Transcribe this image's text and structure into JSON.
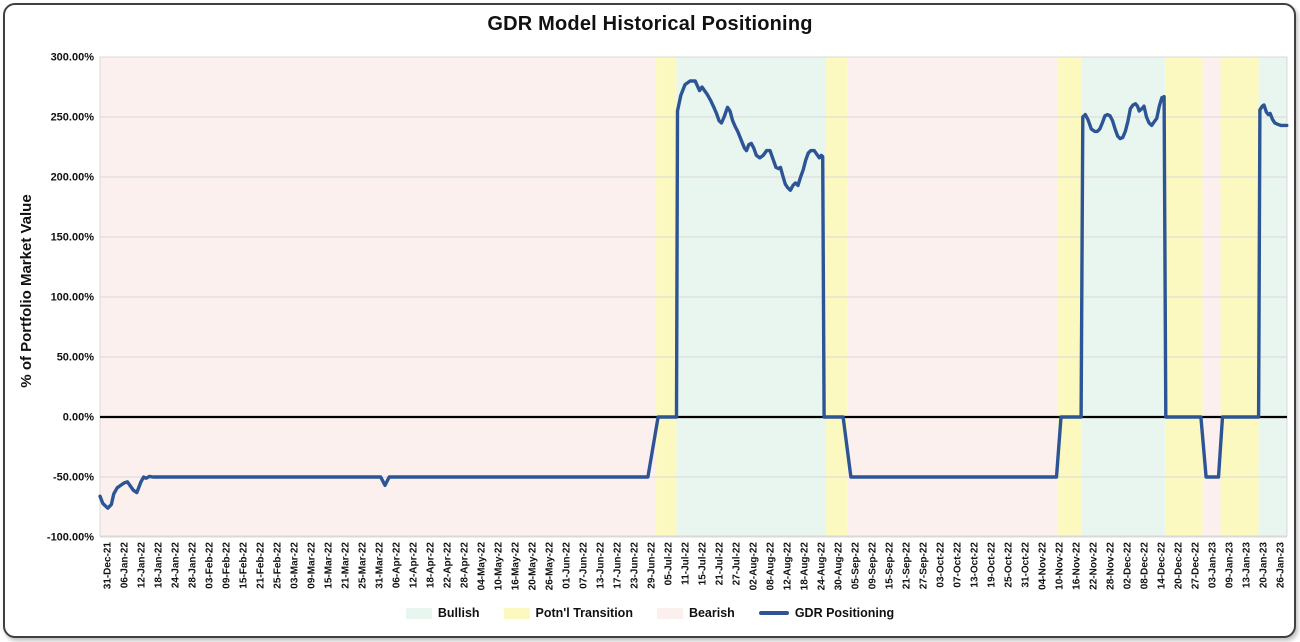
{
  "card": {
    "title": "GDR Model Historical Positioning"
  },
  "y_axis": {
    "title": "% of Portfolio Market Value"
  },
  "legend": [
    {
      "label": "Bullish",
      "color": "#e9f6f0"
    },
    {
      "label": "Potn'l Transition",
      "color": "#fbf9c0"
    },
    {
      "label": "Bearish",
      "color": "#fbf0ee"
    },
    {
      "label": "GDR Positioning",
      "color": "#2d5596"
    }
  ],
  "chart_data": {
    "type": "line",
    "title": "GDR Model Historical Positioning",
    "ylabel": "% of Portfolio Market Value",
    "ylim": [
      -100,
      300
    ],
    "ytick_step": 50,
    "ytick_labels": [
      "300.00%",
      "250.00%",
      "200.00%",
      "150.00%",
      "100.00%",
      "50.00%",
      "0.00%",
      "-50.00%",
      "-100.00%"
    ],
    "grid": true,
    "legend_position": "bottom",
    "x_labels": [
      "31-Dec-21",
      "06-Jan-22",
      "12-Jan-22",
      "18-Jan-22",
      "24-Jan-22",
      "28-Jan-22",
      "03-Feb-22",
      "09-Feb-22",
      "15-Feb-22",
      "21-Feb-22",
      "25-Feb-22",
      "03-Mar-22",
      "09-Mar-22",
      "15-Mar-22",
      "21-Mar-22",
      "25-Mar-22",
      "31-Mar-22",
      "06-Apr-22",
      "12-Apr-22",
      "18-Apr-22",
      "22-Apr-22",
      "28-Apr-22",
      "04-May-22",
      "10-May-22",
      "16-May-22",
      "20-May-22",
      "26-May-22",
      "01-Jun-22",
      "07-Jun-22",
      "13-Jun-22",
      "17-Jun-22",
      "23-Jun-22",
      "29-Jun-22",
      "05-Jul-22",
      "11-Jul-22",
      "15-Jul-22",
      "21-Jul-22",
      "27-Jul-22",
      "02-Aug-22",
      "08-Aug-22",
      "12-Aug-22",
      "18-Aug-22",
      "24-Aug-22",
      "30-Aug-22",
      "05-Sep-22",
      "09-Sep-22",
      "15-Sep-22",
      "21-Sep-22",
      "27-Sep-22",
      "03-Oct-22",
      "07-Oct-22",
      "13-Oct-22",
      "19-Oct-22",
      "25-Oct-22",
      "31-Oct-22",
      "04-Nov-22",
      "10-Nov-22",
      "16-Nov-22",
      "22-Nov-22",
      "28-Nov-22",
      "02-Dec-22",
      "08-Dec-22",
      "14-Dec-22",
      "20-Dec-22",
      "27-Dec-22",
      "03-Jan-23",
      "09-Jan-23",
      "13-Jan-23",
      "20-Jan-23",
      "26-Jan-23"
    ],
    "background_regions": [
      {
        "kind": "bearish",
        "label": "Bearish",
        "start_index": -0.5,
        "end_index": 32.3
      },
      {
        "kind": "transition",
        "label": "Potn'l Transition",
        "start_index": 32.3,
        "end_index": 33.5
      },
      {
        "kind": "bullish",
        "label": "Bullish",
        "start_index": 33.5,
        "end_index": 42.3
      },
      {
        "kind": "transition",
        "label": "Potn'l Transition",
        "start_index": 42.3,
        "end_index": 43.55
      },
      {
        "kind": "bearish",
        "label": "Bearish",
        "start_index": 43.55,
        "end_index": 55.9
      },
      {
        "kind": "transition",
        "label": "Potn'l Transition",
        "start_index": 55.9,
        "end_index": 57.35
      },
      {
        "kind": "bullish",
        "label": "Bullish",
        "start_index": 57.35,
        "end_index": 62.25
      },
      {
        "kind": "transition",
        "label": "Potn'l Transition",
        "start_index": 62.25,
        "end_index": 64.45
      },
      {
        "kind": "bearish",
        "label": "Bearish",
        "start_index": 64.45,
        "end_index": 65.5
      },
      {
        "kind": "transition",
        "label": "Potn'l Transition",
        "start_index": 65.5,
        "end_index": 67.75
      },
      {
        "kind": "bullish",
        "label": "Bullish",
        "start_index": 67.75,
        "end_index": 69.5
      }
    ],
    "series": [
      {
        "name": "GDR Positioning",
        "color": "#2d5596",
        "points": [
          [
            -0.41,
            -66
          ],
          [
            -0.25,
            -72
          ],
          [
            0.05,
            -76
          ],
          [
            0.25,
            -73
          ],
          [
            0.4,
            -64
          ],
          [
            0.6,
            -59
          ],
          [
            0.8,
            -57
          ],
          [
            1.0,
            -55
          ],
          [
            1.2,
            -54
          ],
          [
            1.4,
            -58
          ],
          [
            1.55,
            -61
          ],
          [
            1.75,
            -63
          ],
          [
            2.0,
            -54
          ],
          [
            2.15,
            -50
          ],
          [
            2.3,
            -51
          ],
          [
            2.5,
            -49.5
          ],
          [
            2.7,
            -50
          ],
          [
            16.1,
            -50
          ],
          [
            16.35,
            -57
          ],
          [
            16.6,
            -50
          ],
          [
            31.82,
            -50
          ],
          [
            32.42,
            0
          ],
          [
            33.5,
            0
          ],
          [
            33.56,
            255
          ],
          [
            33.75,
            268
          ],
          [
            34.0,
            277
          ],
          [
            34.3,
            280
          ],
          [
            34.6,
            280
          ],
          [
            34.85,
            272
          ],
          [
            35.0,
            275
          ],
          [
            35.3,
            269
          ],
          [
            35.5,
            264
          ],
          [
            35.7,
            258
          ],
          [
            35.85,
            253
          ],
          [
            36.0,
            247
          ],
          [
            36.15,
            245
          ],
          [
            36.3,
            250
          ],
          [
            36.5,
            258
          ],
          [
            36.65,
            255
          ],
          [
            36.8,
            247
          ],
          [
            36.95,
            242
          ],
          [
            37.1,
            238
          ],
          [
            37.3,
            231
          ],
          [
            37.5,
            224
          ],
          [
            37.62,
            222
          ],
          [
            37.75,
            227
          ],
          [
            37.9,
            228
          ],
          [
            38.05,
            224
          ],
          [
            38.2,
            218
          ],
          [
            38.4,
            216
          ],
          [
            38.6,
            218
          ],
          [
            38.8,
            222
          ],
          [
            39.0,
            222
          ],
          [
            39.2,
            214
          ],
          [
            39.35,
            208
          ],
          [
            39.5,
            207
          ],
          [
            39.62,
            208
          ],
          [
            39.75,
            201
          ],
          [
            39.9,
            194
          ],
          [
            40.05,
            191
          ],
          [
            40.2,
            189
          ],
          [
            40.35,
            193
          ],
          [
            40.5,
            195
          ],
          [
            40.65,
            193
          ],
          [
            40.8,
            200
          ],
          [
            40.95,
            206
          ],
          [
            41.1,
            214
          ],
          [
            41.25,
            220
          ],
          [
            41.4,
            222
          ],
          [
            41.6,
            222
          ],
          [
            41.75,
            219
          ],
          [
            41.9,
            216
          ],
          [
            42.02,
            218
          ],
          [
            42.1,
            217
          ],
          [
            42.18,
            0
          ],
          [
            43.3,
            0
          ],
          [
            43.76,
            -50
          ],
          [
            55.85,
            -50
          ],
          [
            56.12,
            0
          ],
          [
            57.3,
            0
          ],
          [
            57.4,
            250
          ],
          [
            57.55,
            252
          ],
          [
            57.7,
            248
          ],
          [
            57.9,
            240
          ],
          [
            58.1,
            238
          ],
          [
            58.25,
            238
          ],
          [
            58.4,
            240
          ],
          [
            58.55,
            245
          ],
          [
            58.7,
            251
          ],
          [
            58.85,
            252
          ],
          [
            59.0,
            251
          ],
          [
            59.15,
            247
          ],
          [
            59.3,
            240
          ],
          [
            59.45,
            234
          ],
          [
            59.6,
            232
          ],
          [
            59.75,
            233
          ],
          [
            59.9,
            238
          ],
          [
            60.05,
            246
          ],
          [
            60.2,
            257
          ],
          [
            60.35,
            260
          ],
          [
            60.5,
            261
          ],
          [
            60.62,
            259
          ],
          [
            60.72,
            255
          ],
          [
            60.88,
            257
          ],
          [
            61.0,
            259
          ],
          [
            61.15,
            250
          ],
          [
            61.3,
            245
          ],
          [
            61.45,
            243
          ],
          [
            61.6,
            246
          ],
          [
            61.75,
            249
          ],
          [
            61.9,
            259
          ],
          [
            62.05,
            266
          ],
          [
            62.18,
            267
          ],
          [
            62.28,
            0
          ],
          [
            64.35,
            0
          ],
          [
            64.65,
            -50
          ],
          [
            65.38,
            -50
          ],
          [
            65.62,
            0
          ],
          [
            67.74,
            0
          ],
          [
            67.82,
            256
          ],
          [
            67.96,
            259
          ],
          [
            68.06,
            260
          ],
          [
            68.2,
            254
          ],
          [
            68.32,
            252
          ],
          [
            68.42,
            253
          ],
          [
            68.56,
            248
          ],
          [
            68.7,
            245
          ],
          [
            68.85,
            244
          ],
          [
            69.05,
            243
          ],
          [
            69.4,
            243
          ]
        ]
      }
    ],
    "colors": {
      "bullish": "#e9f6f0",
      "transition": "#fbf9c0",
      "bearish": "#fbf0ee",
      "line": "#2d5596",
      "zero_line": "#000000",
      "gridline": "#d9d9d9"
    }
  }
}
